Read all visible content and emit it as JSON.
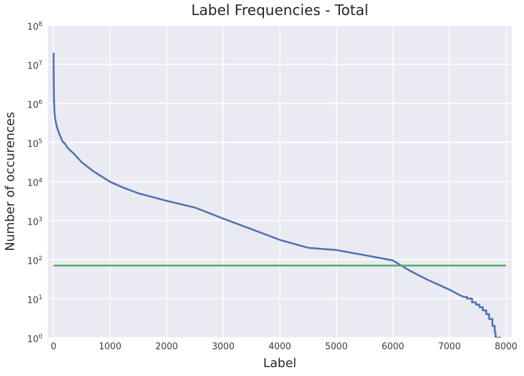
{
  "chart_data": {
    "type": "line",
    "title": "Label Frequencies - Total",
    "xlabel": "Label",
    "ylabel": "Number of occurences",
    "x_scale": "linear",
    "y_scale": "log",
    "xlim": [
      -100,
      8100
    ],
    "ylim": [
      1,
      100000000
    ],
    "xticks": [
      0,
      1000,
      2000,
      3000,
      4000,
      5000,
      6000,
      7000,
      8000
    ],
    "yticks_exponents": [
      0,
      1,
      2,
      3,
      4,
      5,
      6,
      7,
      8
    ],
    "grid": true,
    "legend": false,
    "colors": {
      "plot_background": "#EAEAF2",
      "gridline": "#FFFFFF",
      "curve": "#4C72B0",
      "threshold": "#55A868",
      "text": "#262626"
    },
    "series": [
      {
        "name": "label-frequency-curve",
        "color": "#4C72B0",
        "points": [
          [
            1,
            19000000
          ],
          [
            2,
            9000000
          ],
          [
            4,
            4000000
          ],
          [
            6,
            2000000
          ],
          [
            9,
            1200000
          ],
          [
            13,
            800000
          ],
          [
            18,
            580000
          ],
          [
            25,
            460000
          ],
          [
            35,
            360000
          ],
          [
            60,
            250000
          ],
          [
            100,
            170000
          ],
          [
            160,
            105000
          ],
          [
            200,
            95000
          ],
          [
            250,
            72000
          ],
          [
            350,
            53000
          ],
          [
            500,
            31000
          ],
          [
            700,
            18500
          ],
          [
            1000,
            9800
          ],
          [
            1250,
            6800
          ],
          [
            1500,
            5000
          ],
          [
            2000,
            3200
          ],
          [
            2500,
            2150
          ],
          [
            3000,
            1120
          ],
          [
            3500,
            600
          ],
          [
            4000,
            320
          ],
          [
            4500,
            200
          ],
          [
            5000,
            175
          ],
          [
            5500,
            130
          ],
          [
            6000,
            95
          ],
          [
            6150,
            70
          ],
          [
            6300,
            52
          ],
          [
            6450,
            40
          ],
          [
            6600,
            31
          ],
          [
            6800,
            23
          ],
          [
            7000,
            17
          ],
          [
            7150,
            13
          ],
          [
            7250,
            11
          ],
          [
            7310,
            11
          ],
          [
            7310,
            10
          ],
          [
            7400,
            10
          ],
          [
            7400,
            8
          ],
          [
            7470,
            8
          ],
          [
            7470,
            7
          ],
          [
            7530,
            7
          ],
          [
            7530,
            6
          ],
          [
            7590,
            6
          ],
          [
            7590,
            5
          ],
          [
            7650,
            5
          ],
          [
            7650,
            4
          ],
          [
            7700,
            4
          ],
          [
            7700,
            3
          ],
          [
            7760,
            3
          ],
          [
            7760,
            2
          ],
          [
            7800,
            2
          ],
          [
            7800,
            1.4
          ],
          [
            7815,
            1.4
          ],
          [
            7815,
            1
          ],
          [
            7900,
            1
          ]
        ]
      },
      {
        "name": "count-threshold-line",
        "type": "hline",
        "color": "#55A868",
        "y": 70,
        "x_start": 0,
        "x_end": 8000
      }
    ]
  }
}
